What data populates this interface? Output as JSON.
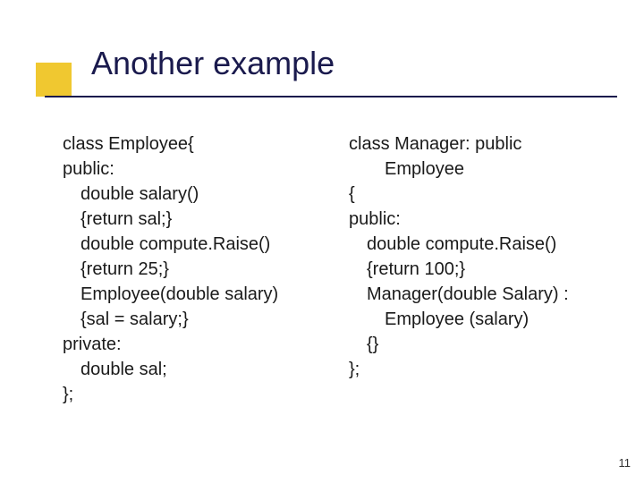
{
  "slide": {
    "title": "Another example",
    "page_number": "11",
    "background_color": "#ffffff",
    "title_color": "#1a1a4d",
    "accent_color": "#f0c830",
    "underline_color": "#1a1a4d",
    "body_fontsize": 20,
    "title_fontsize": 36
  },
  "left": {
    "l1": "class Employee{",
    "l2": "public:",
    "l3": "double salary()",
    "l4": "{return sal;}",
    "l5": "double compute.Raise()",
    "l6": "{return 25;}",
    "l7": "Employee(double salary)",
    "l8": "{sal = salary;}",
    "l9": "private:",
    "l10": "double sal;",
    "l11": "};"
  },
  "right": {
    "l1": "class Manager: public",
    "l1b": "Employee",
    "l2": "{",
    "l3": "public:",
    "l4": "double compute.Raise()",
    "l5": "{return 100;}",
    "l6": "Manager(double Salary) :",
    "l6b": "Employee (salary)",
    "l7": "{}",
    "l8": "};"
  }
}
